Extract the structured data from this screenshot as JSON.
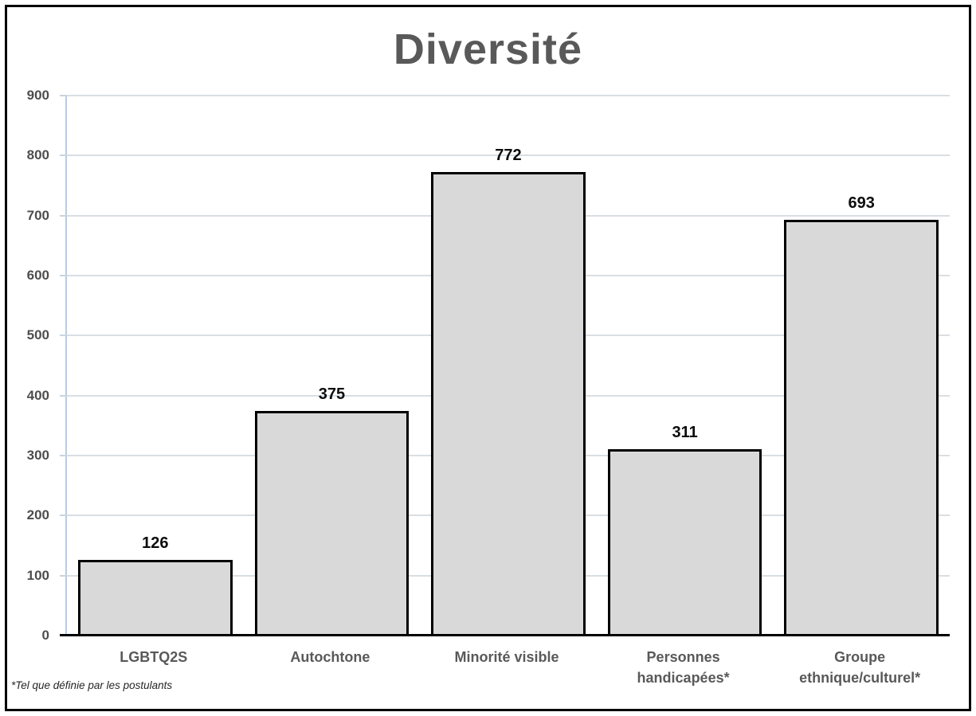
{
  "chart_data": {
    "type": "bar",
    "title": "Diversité",
    "categories": [
      "LGBTQ2S",
      "Autochtone",
      "Minorité visible",
      "Personnes\nhandicapées*",
      "Groupe\nethnique/culturel*"
    ],
    "values": [
      126,
      375,
      772,
      311,
      693
    ],
    "xlabel": "",
    "ylabel": "",
    "ylim": [
      0,
      900
    ],
    "yticks": [
      0,
      100,
      200,
      300,
      400,
      500,
      600,
      700,
      800,
      900
    ],
    "grid": "horizontal",
    "legend": "none",
    "data_labels": [
      126,
      375,
      772,
      311,
      693
    ],
    "bar_fill": "#d9d9d9",
    "bar_border": "#000000"
  },
  "footnote": "*Tel que définie par les postulants",
  "colors": {
    "title": "#595959",
    "axis_label": "#595959",
    "value_label": "#0d0d0d",
    "gridline": "#d9dee3",
    "axis_line": "#b9cce0",
    "baseline": "#000000",
    "frame_border": "#000000",
    "background": "#ffffff"
  }
}
